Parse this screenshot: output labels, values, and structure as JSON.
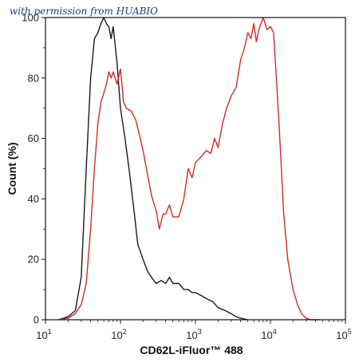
{
  "watermark": "with permission from HUABIO",
  "chart_data": {
    "type": "line",
    "title": "",
    "xlabel": "CD62L-iFluor™ 488",
    "ylabel": "Count  (%)",
    "x_scale": "log",
    "xlim": [
      10,
      100000
    ],
    "ylim": [
      0,
      100
    ],
    "x_ticks": [
      {
        "value": 10,
        "base": "10",
        "exp": "1"
      },
      {
        "value": 100,
        "base": "10",
        "exp": "2"
      },
      {
        "value": 1000,
        "base": "10",
        "exp": "3"
      },
      {
        "value": 10000,
        "base": "10",
        "exp": "4"
      },
      {
        "value": 100000,
        "base": "10",
        "exp": "5"
      }
    ],
    "y_ticks": [
      {
        "value": 0,
        "label": "0"
      },
      {
        "value": 20,
        "label": "20"
      },
      {
        "value": 40,
        "label": "40"
      },
      {
        "value": 60,
        "label": "60"
      },
      {
        "value": 80,
        "label": "80"
      },
      {
        "value": 100,
        "label": "100"
      }
    ],
    "grid": false,
    "series": [
      {
        "color": "#1a1a1a",
        "x": [
          15,
          20,
          25,
          30,
          35,
          40,
          45,
          50,
          55,
          60,
          65,
          70,
          75,
          80,
          90,
          100,
          115,
          130,
          150,
          170,
          200,
          230,
          260,
          300,
          350,
          400,
          450,
          500,
          600,
          700,
          800,
          900,
          1000,
          1200,
          1400,
          1700,
          2000,
          2500,
          3000,
          3500,
          4000,
          5000
        ],
        "y": [
          0,
          1,
          3,
          14,
          50,
          80,
          93,
          95,
          98,
          100,
          98,
          97,
          93,
          97,
          85,
          70,
          60,
          50,
          37,
          25,
          20,
          16,
          14,
          12,
          13,
          12,
          14,
          12,
          12,
          10,
          10,
          9,
          9,
          8,
          7,
          6,
          4,
          3,
          2,
          1,
          0.5,
          0
        ]
      },
      {
        "color": "#d42a2a",
        "x": [
          15,
          20,
          25,
          30,
          35,
          40,
          45,
          50,
          55,
          60,
          65,
          70,
          75,
          80,
          90,
          100,
          110,
          120,
          140,
          160,
          180,
          200,
          230,
          260,
          300,
          330,
          370,
          400,
          450,
          500,
          600,
          700,
          800,
          900,
          1000,
          1200,
          1400,
          1600,
          1800,
          2000,
          2300,
          2600,
          3000,
          3500,
          4000,
          4500,
          5000,
          5500,
          6000,
          6500,
          7000,
          8000,
          9000,
          10000,
          11000,
          12000,
          13000,
          14000,
          15000,
          17000,
          20000,
          23000,
          26000,
          30000,
          35000,
          40000,
          45000
        ],
        "y": [
          0,
          0.5,
          2,
          5,
          12,
          30,
          50,
          65,
          72,
          75,
          78,
          82,
          80,
          82,
          78,
          83,
          72,
          70,
          69,
          66,
          61,
          56,
          48,
          41,
          36,
          30,
          35,
          35,
          38,
          34,
          34,
          40,
          50,
          47,
          52,
          54,
          56,
          55,
          60,
          57,
          65,
          70,
          74,
          77,
          86,
          90,
          95,
          93,
          98,
          92,
          96,
          100,
          96,
          97,
          95,
          80,
          65,
          50,
          35,
          20,
          10,
          5,
          2,
          0.5,
          0,
          0,
          0
        ]
      }
    ]
  }
}
